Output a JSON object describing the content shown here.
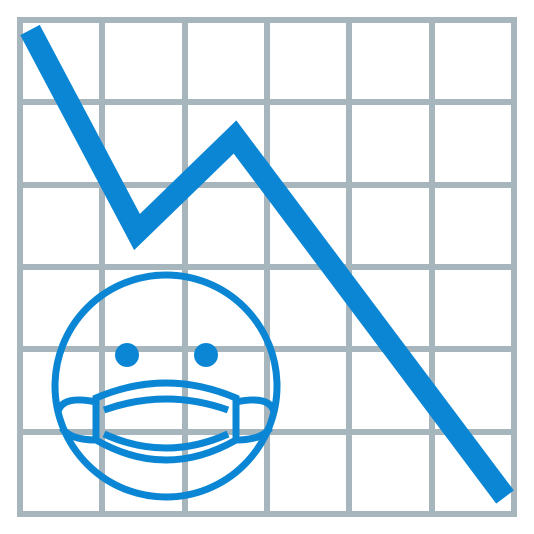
{
  "illustration": {
    "icon": "declining-chart-with-masked-face-icon",
    "colors": {
      "background": "#ffffff",
      "grid": "#a7b5bd",
      "line": "#0a86d4",
      "face": "#0a86d4"
    },
    "trend": "downward"
  }
}
